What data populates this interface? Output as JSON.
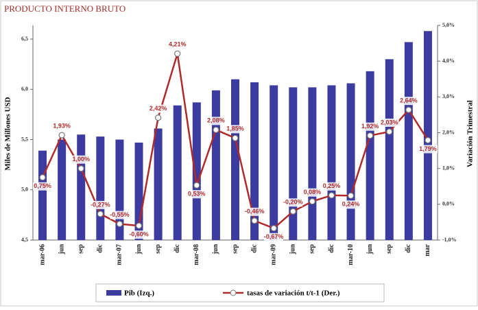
{
  "chart_data": {
    "type": "bar_line",
    "title": "PRODUCTO INTERNO BRUTO",
    "ylabel": "Miles de Millones USD",
    "y2label": "Variación Trimestral",
    "categories": [
      "mar-06",
      "jun",
      "sep",
      "dic",
      "mar-07",
      "jun",
      "sep",
      "dic",
      "mar-08",
      "jun",
      "sep",
      "dic",
      "mar-09",
      "jun",
      "sep",
      "dic",
      "mar-10",
      "jun",
      "sep",
      "dic",
      "mar"
    ],
    "ylim": [
      4.5,
      6.5
    ],
    "yticks": [
      {
        "value": 4.5,
        "label": "4,5"
      },
      {
        "value": 5,
        "label": "5,0"
      },
      {
        "value": 5.5,
        "label": "5,5"
      },
      {
        "value": 6,
        "label": "6,0"
      },
      {
        "value": 6.5,
        "label": "6,5"
      }
    ],
    "y2lim": [
      -1,
      5
    ],
    "y2ticks": [
      {
        "value": -1,
        "label": "-1,0%"
      },
      {
        "value": 0,
        "label": "0,0%"
      },
      {
        "value": 1,
        "label": "1,0%"
      },
      {
        "value": 2,
        "label": "2,0%"
      },
      {
        "value": 3,
        "label": "3,0%"
      },
      {
        "value": 4,
        "label": "4,0%"
      },
      {
        "value": 5,
        "label": "5,0%"
      }
    ],
    "legend": "bottom",
    "series": [
      {
        "name": "Pib (Izq.)",
        "color": "#3b3ba0",
        "values": [
          5.39,
          5.5,
          5.55,
          5.53,
          5.5,
          5.47,
          5.61,
          5.84,
          5.87,
          5.99,
          6.1,
          6.07,
          6.04,
          6.02,
          6.02,
          6.04,
          6.06,
          6.18,
          6.3,
          6.47,
          6.58
        ]
      },
      {
        "name": "tasas de variación t/t-1 (Der.)",
        "color": "#b02a2a",
        "axis": "y2",
        "values": [
          0.75,
          1.93,
          1.0,
          -0.27,
          -0.55,
          -0.6,
          2.42,
          4.21,
          0.53,
          2.08,
          1.85,
          -0.46,
          -0.67,
          -0.2,
          0.08,
          0.25,
          0.24,
          1.92,
          2.03,
          2.64,
          1.79
        ],
        "value_labels": [
          "0,75%",
          "1,93%",
          "1,00%",
          "-0,27%",
          "-0,55%",
          "-0,60%",
          "2,42%",
          "4,21%",
          "0,53%",
          "2,08%",
          "1,85%",
          "-0,46%",
          "-0,67%",
          "-0,20%",
          "0,08%",
          "0,25%",
          "0,24%",
          "1,92%",
          "2,03%",
          "2,64%",
          "1,79%"
        ]
      }
    ]
  }
}
